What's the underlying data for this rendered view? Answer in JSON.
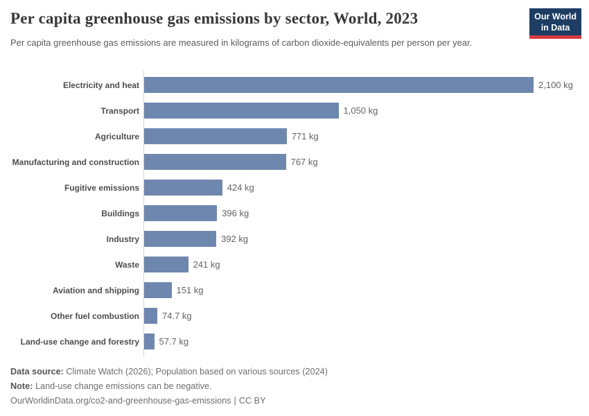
{
  "header": {
    "title": "Per capita greenhouse gas emissions by sector, World, 2023",
    "subtitle": "Per capita greenhouse gas emissions are measured in kilograms of carbon dioxide-equivalents per person per year.",
    "logo": {
      "line1": "Our World",
      "line2": "in Data",
      "bg_color": "#1d3d63",
      "accent_color": "#d63b41"
    }
  },
  "chart_data": {
    "type": "bar",
    "orientation": "horizontal",
    "title": "Per capita greenhouse gas emissions by sector, World, 2023",
    "unit": "kg CO2-equivalents per person per year",
    "categories": [
      "Electricity and heat",
      "Transport",
      "Agriculture",
      "Manufacturing and construction",
      "Fugitive emissions",
      "Buildings",
      "Industry",
      "Waste",
      "Aviation and shipping",
      "Other fuel combustion",
      "Land-use change and forestry"
    ],
    "values": [
      2100,
      1050,
      771,
      767,
      424,
      396,
      392,
      241,
      151,
      74.7,
      57.7
    ],
    "value_labels": [
      "2,100 kg",
      "1,050 kg",
      "771 kg",
      "767 kg",
      "424 kg",
      "396 kg",
      "392 kg",
      "241 kg",
      "151 kg",
      "74.7 kg",
      "57.7 kg"
    ],
    "xlim": [
      0,
      2100
    ],
    "bar_color": "#6e87ae",
    "grid": false,
    "legend": "none"
  },
  "footer": {
    "data_source_label": "Data source:",
    "data_source_text": "Climate Watch (2026); Population based on various sources (2024)",
    "note_label": "Note:",
    "note_text": "Land-use change emissions can be negative.",
    "url": "OurWorldinData.org/co2-and-greenhouse-gas-emissions",
    "url_separator": "|",
    "license": "CC BY"
  }
}
